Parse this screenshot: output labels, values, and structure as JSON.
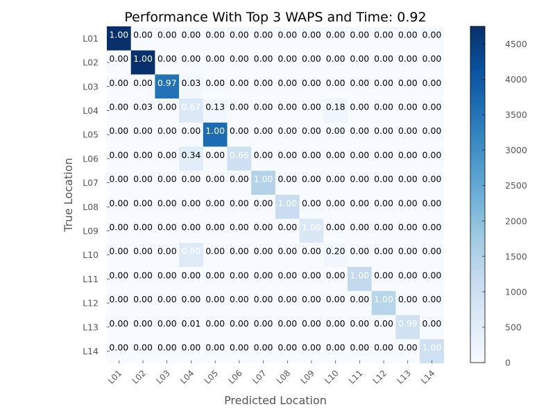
{
  "chart_data": {
    "type": "heatmap",
    "title": "Performance With Top 3 WAPS and Time: 0.92",
    "xlabel": "Predicted Location",
    "ylabel": "True Location",
    "x_categories": [
      "L01",
      "L02",
      "L03",
      "L04",
      "L05",
      "L06",
      "L07",
      "L08",
      "L09",
      "L10",
      "L11",
      "L12",
      "L13",
      "L14"
    ],
    "y_categories": [
      "L01",
      "L02",
      "L03",
      "L04",
      "L05",
      "L06",
      "L07",
      "L08",
      "L09",
      "L10",
      "L11",
      "L12",
      "L13",
      "L14"
    ],
    "values": [
      [
        1.0,
        0.0,
        0.0,
        0.0,
        0.0,
        0.0,
        0.0,
        0.0,
        0.0,
        0.0,
        0.0,
        0.0,
        0.0,
        0.0
      ],
      [
        0.0,
        1.0,
        0.0,
        0.0,
        0.0,
        0.0,
        0.0,
        0.0,
        0.0,
        0.0,
        0.0,
        0.0,
        0.0,
        0.0
      ],
      [
        0.0,
        0.0,
        0.97,
        0.03,
        0.0,
        0.0,
        0.0,
        0.0,
        0.0,
        0.0,
        0.0,
        0.0,
        0.0,
        0.0
      ],
      [
        0.0,
        0.03,
        0.0,
        0.67,
        0.13,
        0.0,
        0.0,
        0.0,
        0.0,
        0.18,
        0.0,
        0.0,
        0.0,
        0.0
      ],
      [
        0.0,
        0.0,
        0.0,
        0.0,
        1.0,
        0.0,
        0.0,
        0.0,
        0.0,
        0.0,
        0.0,
        0.0,
        0.0,
        0.0
      ],
      [
        0.0,
        0.0,
        0.0,
        0.34,
        0.0,
        0.66,
        0.0,
        0.0,
        0.0,
        0.0,
        0.0,
        0.0,
        0.0,
        0.0
      ],
      [
        0.0,
        0.0,
        0.0,
        0.0,
        0.0,
        0.0,
        1.0,
        0.0,
        0.0,
        0.0,
        0.0,
        0.0,
        0.0,
        0.0
      ],
      [
        0.0,
        0.0,
        0.0,
        0.0,
        0.0,
        0.0,
        0.0,
        1.0,
        0.0,
        0.0,
        0.0,
        0.0,
        0.0,
        0.0
      ],
      [
        0.0,
        0.0,
        0.0,
        0.0,
        0.0,
        0.0,
        0.0,
        0.0,
        1.0,
        0.0,
        0.0,
        0.0,
        0.0,
        0.0
      ],
      [
        0.0,
        0.0,
        0.0,
        0.8,
        0.0,
        0.0,
        0.0,
        0.0,
        0.0,
        0.2,
        0.0,
        0.0,
        0.0,
        0.0
      ],
      [
        0.0,
        0.0,
        0.0,
        0.0,
        0.0,
        0.0,
        0.0,
        0.0,
        0.0,
        0.0,
        1.0,
        0.0,
        0.0,
        0.0
      ],
      [
        0.0,
        0.0,
        0.0,
        0.0,
        0.0,
        0.0,
        0.0,
        0.0,
        0.0,
        0.0,
        0.0,
        1.0,
        0.0,
        0.0
      ],
      [
        0.0,
        0.0,
        0.0,
        0.01,
        0.0,
        0.0,
        0.0,
        0.0,
        0.0,
        0.0,
        0.0,
        0.0,
        0.99,
        0.0
      ],
      [
        0.0,
        0.0,
        0.0,
        0.0,
        0.0,
        0.0,
        0.0,
        0.0,
        0.0,
        0.0,
        0.0,
        0.0,
        0.0,
        1.0
      ]
    ],
    "color_values": [
      [
        4750,
        0,
        0,
        0,
        0,
        0,
        0,
        0,
        0,
        0,
        0,
        0,
        0,
        0
      ],
      [
        0,
        4750,
        0,
        0,
        0,
        0,
        0,
        0,
        0,
        0,
        0,
        0,
        0,
        0
      ],
      [
        0,
        0,
        3550,
        110,
        0,
        0,
        0,
        0,
        0,
        0,
        0,
        0,
        0,
        0
      ],
      [
        0,
        25,
        0,
        680,
        130,
        0,
        0,
        0,
        0,
        180,
        0,
        0,
        0,
        0
      ],
      [
        0,
        0,
        0,
        0,
        3650,
        0,
        0,
        0,
        0,
        0,
        0,
        0,
        0,
        0
      ],
      [
        0,
        0,
        0,
        520,
        0,
        1000,
        0,
        0,
        0,
        0,
        0,
        0,
        0,
        0
      ],
      [
        0,
        0,
        0,
        0,
        0,
        0,
        1450,
        0,
        0,
        0,
        0,
        0,
        0,
        0
      ],
      [
        0,
        0,
        0,
        0,
        0,
        0,
        0,
        1100,
        0,
        0,
        0,
        0,
        0,
        0
      ],
      [
        0,
        0,
        0,
        0,
        0,
        0,
        0,
        0,
        700,
        0,
        0,
        0,
        0,
        0
      ],
      [
        0,
        0,
        0,
        600,
        0,
        0,
        0,
        0,
        0,
        150,
        0,
        0,
        0,
        0
      ],
      [
        0,
        0,
        0,
        0,
        0,
        0,
        0,
        0,
        0,
        0,
        1250,
        0,
        0,
        0
      ],
      [
        0,
        0,
        0,
        0,
        0,
        0,
        0,
        0,
        0,
        0,
        0,
        1400,
        0,
        0
      ],
      [
        0,
        0,
        0,
        10,
        0,
        0,
        0,
        0,
        0,
        0,
        0,
        0,
        950,
        0
      ],
      [
        0,
        0,
        0,
        0,
        0,
        0,
        0,
        0,
        0,
        0,
        0,
        0,
        0,
        1000
      ]
    ],
    "colorbar": {
      "min": 0,
      "max": 4750,
      "ticks": [
        0,
        500,
        1000,
        1500,
        2000,
        2500,
        3000,
        3500,
        4000,
        4500
      ],
      "colormap": [
        "#f7fbff",
        "#deebf7",
        "#c6dbef",
        "#9ecae1",
        "#6baed6",
        "#4292c6",
        "#2171b5",
        "#08519c",
        "#08306b"
      ]
    },
    "grid": false,
    "value_format": "2 decimals"
  }
}
